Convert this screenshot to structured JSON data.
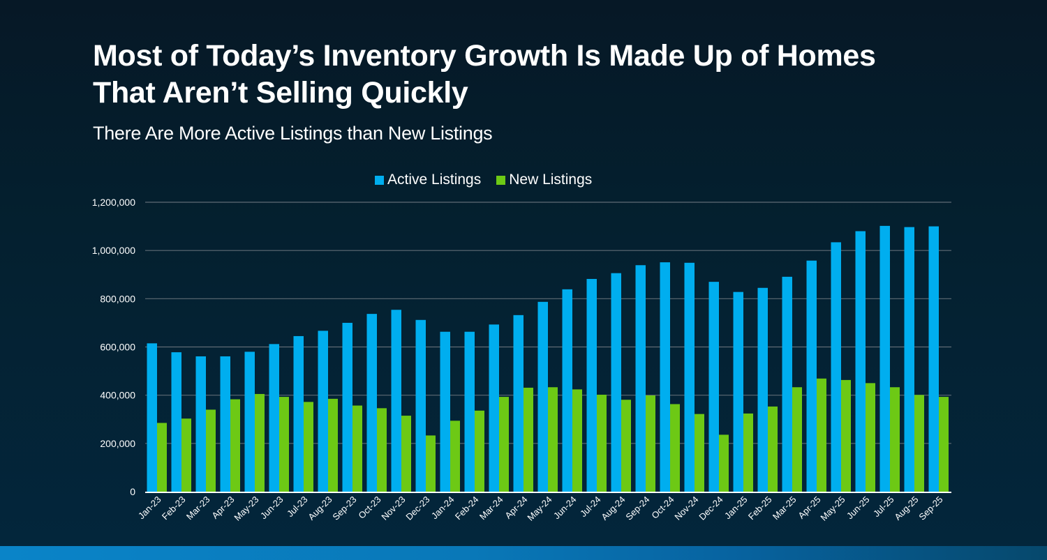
{
  "header": {
    "title_line1": "Most of Today’s Inventory Growth Is Made Up of Homes",
    "title_line2": "That Aren’t Selling Quickly",
    "subtitle": "There Are More Active Listings than New Listings"
  },
  "colors": {
    "active": "#00AEEF",
    "new": "#6DC915",
    "gridline": "#5f6b75",
    "axis": "#ffffff"
  },
  "chart_data": {
    "type": "bar",
    "title": "Most of Today’s Inventory Growth Is Made Up of Homes That Aren’t Selling Quickly",
    "subtitle": "There Are More Active Listings than New Listings",
    "xlabel": "",
    "ylabel": "",
    "ylim": [
      0,
      1200000
    ],
    "yticks": [
      0,
      200000,
      400000,
      600000,
      800000,
      1000000,
      1200000
    ],
    "ytick_labels": [
      "0",
      "200,000",
      "400,000",
      "600,000",
      "800,000",
      "1,000,000",
      "1,200,000"
    ],
    "grid": true,
    "legend_position": "top-center",
    "categories": [
      "Jan-23",
      "Feb-23",
      "Mar-23",
      "Apr-23",
      "May-23",
      "Jun-23",
      "Jul-23",
      "Aug-23",
      "Sep-23",
      "Oct-23",
      "Nov-23",
      "Dec-23",
      "Jan-24",
      "Feb-24",
      "Mar-24",
      "Apr-24",
      "May-24",
      "Jun-24",
      "Jul-24",
      "Aug-24",
      "Sep-24",
      "Oct-24",
      "Nov-24",
      "Dec-24",
      "Jan-25",
      "Feb-25",
      "Mar-25",
      "Apr-25",
      "May-25",
      "Jun-25",
      "Jul-25",
      "Aug-25",
      "Sep-25"
    ],
    "series": [
      {
        "name": "Active Listings",
        "color": "#00AEEF",
        "values": [
          615000,
          578000,
          561000,
          561000,
          580000,
          612000,
          645000,
          667000,
          700000,
          737000,
          754000,
          712000,
          663000,
          663000,
          693000,
          732000,
          787000,
          839000,
          882000,
          906000,
          939000,
          951000,
          949000,
          870000,
          828000,
          845000,
          891000,
          958000,
          1034000,
          1080000,
          1102000,
          1097000,
          1100000
        ]
      },
      {
        "name": "New Listings",
        "color": "#6DC915",
        "values": [
          285000,
          303000,
          340000,
          383000,
          405000,
          393000,
          372000,
          385000,
          357000,
          346000,
          315000,
          233000,
          294000,
          336000,
          393000,
          431000,
          433000,
          424000,
          402000,
          381000,
          399000,
          363000,
          322000,
          236000,
          324000,
          353000,
          433000,
          469000,
          463000,
          450000,
          433000,
          401000,
          393000
        ]
      }
    ]
  }
}
